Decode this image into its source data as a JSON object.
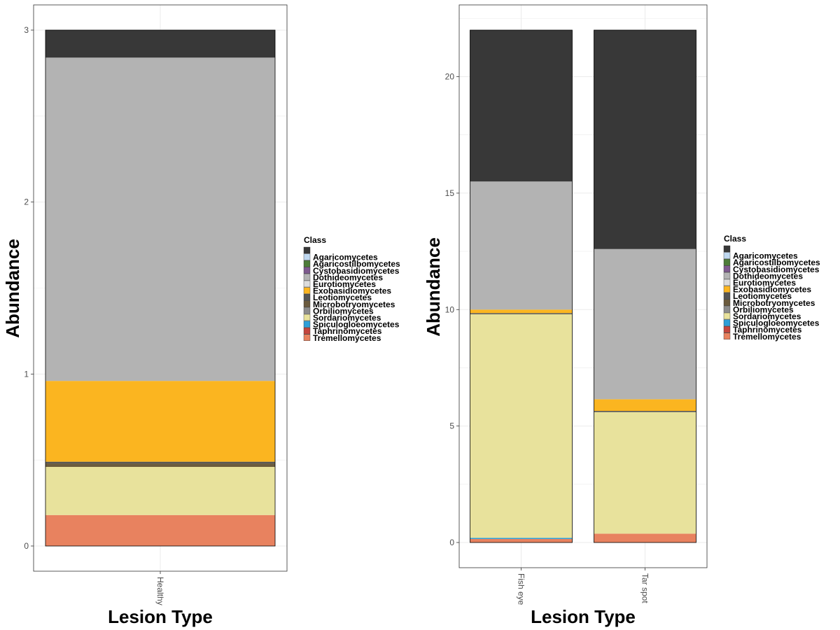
{
  "chart_data": [
    {
      "type": "bar",
      "stacked": true,
      "categories": [
        "Healthy"
      ],
      "xlabel": "Lesion Type",
      "ylabel": "Abundance",
      "ylim": [
        0,
        3
      ],
      "yticks": [
        0,
        1,
        2,
        3
      ],
      "grid": true,
      "legend_position": "right",
      "legend_title": "Class",
      "series": [
        {
          "name": "Tremellomycetes",
          "color": "#E8825F",
          "values": [
            0.18
          ]
        },
        {
          "name": "Taphrinomycetes",
          "color": "#C4453D",
          "values": [
            0.0
          ]
        },
        {
          "name": "Spiculogloeomycetes",
          "color": "#2E9FD8",
          "values": [
            0.0
          ]
        },
        {
          "name": "Sordariomycetes",
          "color": "#E8E29C",
          "values": [
            0.28
          ]
        },
        {
          "name": "Orbiliomycetes",
          "color": "#8C8C8C",
          "values": [
            0.0
          ]
        },
        {
          "name": "Microbotryomycetes",
          "color": "#6B5B3E",
          "values": [
            0.02
          ]
        },
        {
          "name": "Leotiomycetes",
          "color": "#555555",
          "values": [
            0.01
          ]
        },
        {
          "name": "Exobasidiomycetes",
          "color": "#FBB520",
          "values": [
            0.47
          ]
        },
        {
          "name": "Eurotiomycetes",
          "color": "#DCDCDC",
          "values": [
            0.0
          ]
        },
        {
          "name": "Dothideomycetes",
          "color": "#B3B3B3",
          "values": [
            1.88
          ]
        },
        {
          "name": "Cystobasidiomycetes",
          "color": "#7E5A8E",
          "values": [
            0.0
          ]
        },
        {
          "name": "Agaricostilbomycetes",
          "color": "#4E7C3A",
          "values": [
            0.0
          ]
        },
        {
          "name": "Agaricomycetes",
          "color": "#BFD8F0",
          "values": [
            0.0
          ]
        },
        {
          "name": "",
          "color": "#383838",
          "values": [
            0.16
          ]
        }
      ]
    },
    {
      "type": "bar",
      "stacked": true,
      "categories": [
        "Fish eye",
        "Tar spot"
      ],
      "xlabel": "Lesion Type",
      "ylabel": "Abundance",
      "ylim": [
        0,
        22
      ],
      "yticks": [
        0,
        5,
        10,
        15,
        20
      ],
      "grid": true,
      "legend_position": "right",
      "legend_title": "Class",
      "series": [
        {
          "name": "Tremellomycetes",
          "color": "#E8825F",
          "values": [
            0.15,
            0.38
          ]
        },
        {
          "name": "Taphrinomycetes",
          "color": "#C4453D",
          "values": [
            0.0,
            0.0
          ]
        },
        {
          "name": "Spiculogloeomycetes",
          "color": "#2E9FD8",
          "values": [
            0.05,
            0.0
          ]
        },
        {
          "name": "Sordariomycetes",
          "color": "#E8E29C",
          "values": [
            9.6,
            5.22
          ]
        },
        {
          "name": "Orbiliomycetes",
          "color": "#8C8C8C",
          "values": [
            0.0,
            0.0
          ]
        },
        {
          "name": "Microbotryomycetes",
          "color": "#6B5B3E",
          "values": [
            0.0,
            0.0
          ]
        },
        {
          "name": "Leotiomycetes",
          "color": "#555555",
          "values": [
            0.05,
            0.05
          ]
        },
        {
          "name": "Exobasidiomycetes",
          "color": "#FBB520",
          "values": [
            0.15,
            0.5
          ]
        },
        {
          "name": "Eurotiomycetes",
          "color": "#DCDCDC",
          "values": [
            0.0,
            0.0
          ]
        },
        {
          "name": "Dothideomycetes",
          "color": "#B3B3B3",
          "values": [
            5.5,
            6.45
          ]
        },
        {
          "name": "Cystobasidiomycetes",
          "color": "#7E5A8E",
          "values": [
            0.0,
            0.0
          ]
        },
        {
          "name": "Agaricostilbomycetes",
          "color": "#4E7C3A",
          "values": [
            0.0,
            0.0
          ]
        },
        {
          "name": "Agaricomycetes",
          "color": "#BFD8F0",
          "values": [
            0.0,
            0.0
          ]
        },
        {
          "name": "",
          "color": "#383838",
          "values": [
            6.5,
            9.4
          ]
        }
      ]
    }
  ],
  "legend": {
    "title": "Class",
    "items": [
      {
        "name": "",
        "color": "#383838"
      },
      {
        "name": "Agaricomycetes",
        "color": "#BFD8F0"
      },
      {
        "name": "Agaricostilbomycetes",
        "color": "#4E7C3A"
      },
      {
        "name": "Cystobasidiomycetes",
        "color": "#7E5A8E"
      },
      {
        "name": "Dothideomycetes",
        "color": "#B3B3B3"
      },
      {
        "name": "Eurotiomycetes",
        "color": "#DCDCDC"
      },
      {
        "name": "Exobasidiomycetes",
        "color": "#FBB520"
      },
      {
        "name": "Leotiomycetes",
        "color": "#555555"
      },
      {
        "name": "Microbotryomycetes",
        "color": "#6B5B3E"
      },
      {
        "name": "Orbiliomycetes",
        "color": "#8C8C8C"
      },
      {
        "name": "Sordariomycetes",
        "color": "#E8E29C"
      },
      {
        "name": "Spiculogloeomycetes",
        "color": "#2E9FD8"
      },
      {
        "name": "Taphrinomycetes",
        "color": "#C4453D"
      },
      {
        "name": "Tremellomycetes",
        "color": "#E8825F"
      }
    ]
  }
}
